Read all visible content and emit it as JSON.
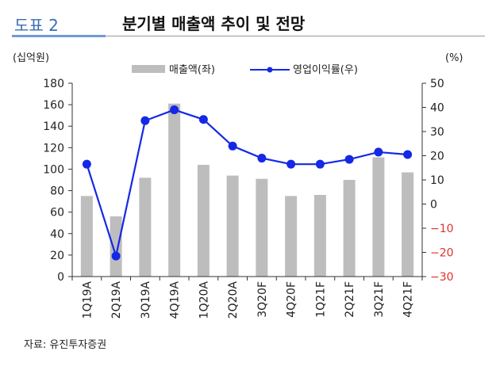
{
  "header": {
    "figure_label": "도표 2",
    "title": "분기별 매출액 추이 및 전망"
  },
  "source": "자료: 유진투자증권",
  "colors": {
    "bar": "#bdbdbd",
    "line": "#1428e6",
    "negative_tick": "#e0302a",
    "accent": "#6e9bd6"
  },
  "chart_data": {
    "type": "bar+line",
    "categories": [
      "1Q19A",
      "2Q19A",
      "3Q19A",
      "4Q19A",
      "1Q20A",
      "2Q20A",
      "3Q20F",
      "4Q20F",
      "1Q21F",
      "2Q21F",
      "3Q21F",
      "4Q21F"
    ],
    "series": [
      {
        "name": "매출액(좌)",
        "type": "bar",
        "axis": "left",
        "values": [
          75,
          56,
          92,
          161,
          104,
          94,
          91,
          75,
          76,
          90,
          111,
          97
        ]
      },
      {
        "name": "영업이익률(우)",
        "type": "line",
        "axis": "right",
        "values": [
          16.5,
          -21.5,
          34.5,
          39.0,
          35.0,
          24.0,
          19.0,
          16.5,
          16.5,
          18.5,
          21.5,
          20.5
        ]
      }
    ],
    "y_left": {
      "unit_label": "(십억원)",
      "range": [
        0,
        180
      ],
      "ticks": [
        "0",
        "20",
        "40",
        "60",
        "80",
        "100",
        "120",
        "140",
        "160",
        "180"
      ]
    },
    "y_right": {
      "unit_label": "(%)",
      "range": [
        -30,
        50
      ],
      "ticks": [
        "−30",
        "−20",
        "−10",
        "0",
        "10",
        "20",
        "30",
        "40",
        "50"
      ]
    },
    "legend": [
      "매출액(좌)",
      "영업이익률(우)"
    ],
    "legend_position": "top-center"
  }
}
